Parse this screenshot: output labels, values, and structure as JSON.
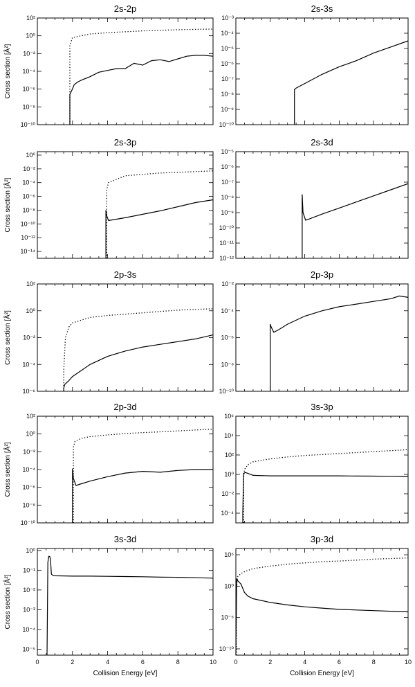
{
  "figure": {
    "shared_ylabel": "Cross section [Å²]",
    "shared_xlabel": "Collision Energy [eV]",
    "x_tick_labels": [
      "0",
      "2",
      "4",
      "6",
      "8",
      "10"
    ]
  },
  "chart_data": [
    {
      "type": "line",
      "title": "2s-2p",
      "xlabel": "",
      "ylabel": "Cross section [Å²]",
      "xlim": [
        0,
        10
      ],
      "ylim_log10": [
        -10,
        2
      ],
      "yscale": "log",
      "ytick_labels": [
        "10⁻¹⁰",
        "10⁻⁸",
        "10⁻⁶",
        "10⁻⁴",
        "10⁻²",
        "10⁰",
        "10²"
      ],
      "series": [
        {
          "style": "dotted",
          "onset": 1.85,
          "x": [
            1.85,
            2,
            3,
            4,
            5,
            6,
            7,
            8,
            9,
            10
          ],
          "log10_y": [
            -1.1,
            -0.2,
            0.2,
            0.35,
            0.45,
            0.55,
            0.62,
            0.68,
            0.72,
            0.75
          ]
        },
        {
          "style": "solid",
          "onset": 1.85,
          "x": [
            1.85,
            1.95,
            2.1,
            2.3,
            2.5,
            3,
            3.5,
            4,
            4.5,
            5,
            5.5,
            6,
            6.5,
            7,
            7.5,
            8,
            8.5,
            9,
            9.5,
            10
          ],
          "log10_y": [
            -6.6,
            -6.2,
            -5.5,
            -5.2,
            -5.0,
            -4.6,
            -4.1,
            -3.9,
            -3.7,
            -3.7,
            -3.1,
            -3.3,
            -2.8,
            -2.7,
            -2.9,
            -2.6,
            -2.3,
            -2.2,
            -2.2,
            -2.3
          ]
        }
      ]
    },
    {
      "type": "line",
      "title": "2s-3s",
      "xlabel": "",
      "ylabel": "",
      "xlim": [
        0,
        10
      ],
      "ylim_log10": [
        -10,
        -3
      ],
      "yscale": "log",
      "ytick_labels": [
        "10⁻¹⁰",
        "10⁻⁹",
        "10⁻⁸",
        "10⁻⁷",
        "10⁻⁶",
        "10⁻⁵",
        "10⁻⁴",
        "10⁻³"
      ],
      "series": [
        {
          "style": "solid",
          "onset": 3.4,
          "x": [
            3.4,
            3.5,
            4,
            5,
            6,
            7,
            8,
            9,
            10
          ],
          "log10_y": [
            -7.7,
            -7.6,
            -7.3,
            -6.7,
            -6.2,
            -5.8,
            -5.3,
            -4.9,
            -4.5
          ]
        }
      ]
    },
    {
      "type": "line",
      "title": "2s-3p",
      "xlabel": "",
      "ylabel": "Cross section [Å²]",
      "xlim": [
        0,
        10
      ],
      "ylim_log10": [
        -15,
        0.5
      ],
      "yscale": "log",
      "ytick_labels": [
        "10⁻¹⁴",
        "10⁻¹²",
        "10⁻¹⁰",
        "10⁻⁸",
        "10⁻⁶",
        "10⁻⁴",
        "10⁻²",
        "10⁰"
      ],
      "series": [
        {
          "style": "dotted",
          "onset": 3.95,
          "x": [
            3.95,
            4.05,
            5,
            6,
            7,
            8,
            9,
            10
          ],
          "log10_y": [
            -5.0,
            -4.0,
            -3.0,
            -2.8,
            -2.6,
            -2.5,
            -2.4,
            -2.3
          ]
        },
        {
          "style": "solid",
          "onset": 3.9,
          "x": [
            3.9,
            3.95,
            4.05,
            4.3,
            5,
            6,
            7,
            8,
            9,
            10
          ],
          "log10_y": [
            -8.0,
            -8.8,
            -9.5,
            -9.4,
            -9.1,
            -8.6,
            -8.1,
            -7.5,
            -6.9,
            -6.5
          ]
        }
      ]
    },
    {
      "type": "line",
      "title": "2s-3d",
      "xlabel": "",
      "ylabel": "",
      "xlim": [
        0,
        10
      ],
      "ylim_log10": [
        -12,
        -5
      ],
      "yscale": "log",
      "ytick_labels": [
        "10⁻¹²",
        "10⁻¹¹",
        "10⁻¹⁰",
        "10⁻⁹",
        "10⁻⁸",
        "10⁻⁷",
        "10⁻⁶",
        "10⁻⁵"
      ],
      "series": [
        {
          "style": "solid",
          "onset": 3.85,
          "x": [
            3.85,
            3.9,
            4.05,
            4.3,
            5,
            6,
            7,
            8,
            9,
            10
          ],
          "log10_y": [
            -7.8,
            -9.0,
            -9.5,
            -9.4,
            -9.1,
            -8.7,
            -8.3,
            -7.9,
            -7.5,
            -7.1
          ]
        }
      ]
    },
    {
      "type": "line",
      "title": "2p-3s",
      "xlabel": "",
      "ylabel": "Cross section [Å²]",
      "xlim": [
        0,
        10
      ],
      "ylim_log10": [
        -6,
        2
      ],
      "yscale": "log",
      "ytick_labels": [
        "10⁻⁶",
        "10⁻⁴",
        "10⁻²",
        "10⁰",
        "10²"
      ],
      "series": [
        {
          "style": "dotted",
          "onset": 1.5,
          "x": [
            1.5,
            1.6,
            1.8,
            2,
            3,
            4,
            5,
            6,
            7,
            8,
            9,
            10
          ],
          "log10_y": [
            -4.5,
            -2.0,
            -1.2,
            -0.9,
            -0.5,
            -0.35,
            -0.25,
            -0.15,
            -0.05,
            0.05,
            0.1,
            0.15
          ]
        },
        {
          "style": "solid",
          "onset": 1.5,
          "x": [
            1.5,
            1.55,
            1.8,
            2,
            3,
            4,
            5,
            6,
            7,
            8,
            9,
            10
          ],
          "log10_y": [
            -5.8,
            -5.5,
            -5.2,
            -4.9,
            -4.0,
            -3.4,
            -3.0,
            -2.7,
            -2.5,
            -2.3,
            -2.1,
            -1.8
          ]
        }
      ]
    },
    {
      "type": "line",
      "title": "2p-3p",
      "xlabel": "",
      "ylabel": "",
      "xlim": [
        0,
        10
      ],
      "ylim_log10": [
        -10,
        -2
      ],
      "yscale": "log",
      "ytick_labels": [
        "10⁻¹⁰",
        "10⁻⁸",
        "10⁻⁶",
        "10⁻⁴",
        "10⁻²"
      ],
      "series": [
        {
          "style": "solid",
          "onset": 2.0,
          "x": [
            2.0,
            2.05,
            2.2,
            2.5,
            3,
            4,
            5,
            6,
            7,
            8,
            9,
            9.5,
            10
          ],
          "log10_y": [
            -5.0,
            -5.2,
            -5.6,
            -5.4,
            -5.0,
            -4.4,
            -4.0,
            -3.7,
            -3.5,
            -3.3,
            -3.1,
            -2.9,
            -3.0
          ]
        }
      ]
    },
    {
      "type": "line",
      "title": "2p-3d",
      "xlabel": "",
      "ylabel": "Cross section [Å²]",
      "xlim": [
        0,
        10
      ],
      "ylim_log10": [
        -10,
        2
      ],
      "yscale": "log",
      "ytick_labels": [
        "10⁻¹⁰",
        "10⁻⁸",
        "10⁻⁶",
        "10⁻⁴",
        "10⁻²",
        "10⁰",
        "10²"
      ],
      "series": [
        {
          "style": "dotted",
          "onset": 2.05,
          "x": [
            2.05,
            2.15,
            2.5,
            3,
            4,
            5,
            6,
            7,
            8,
            9,
            10
          ],
          "log10_y": [
            -1.5,
            -0.8,
            -0.5,
            -0.3,
            -0.1,
            0.05,
            0.15,
            0.25,
            0.35,
            0.45,
            0.55
          ]
        },
        {
          "style": "solid",
          "onset": 2.0,
          "x": [
            2.0,
            2.05,
            2.2,
            2.5,
            3,
            4,
            5,
            6,
            7,
            8,
            9,
            10
          ],
          "log10_y": [
            -3.9,
            -5.0,
            -5.8,
            -5.6,
            -5.3,
            -4.8,
            -4.4,
            -4.2,
            -4.3,
            -4.1,
            -4.0,
            -4.0
          ]
        }
      ]
    },
    {
      "type": "line",
      "title": "3s-3p",
      "xlabel": "",
      "ylabel": "",
      "xlim": [
        0,
        10
      ],
      "ylim_log10": [
        -5,
        6
      ],
      "yscale": "log",
      "ytick_labels": [
        "10⁻⁴",
        "10⁻²",
        "10⁰",
        "10²",
        "10⁴",
        "10⁶"
      ],
      "series": [
        {
          "style": "dotted",
          "onset": 0.45,
          "x": [
            0.45,
            0.5,
            0.7,
            1,
            2,
            3,
            4,
            5,
            6,
            7,
            8,
            9,
            10
          ],
          "log10_y": [
            -0.5,
            0.5,
            1.0,
            1.3,
            1.6,
            1.8,
            1.95,
            2.05,
            2.15,
            2.25,
            2.35,
            2.45,
            2.55
          ]
        },
        {
          "style": "solid",
          "onset": 0.4,
          "x": [
            0.4,
            0.45,
            0.55,
            0.7,
            1,
            2,
            3,
            4,
            5,
            6,
            7,
            8,
            9,
            10
          ],
          "log10_y": [
            -4.0,
            0.1,
            0.2,
            0.1,
            -0.1,
            -0.15,
            -0.15,
            -0.15,
            -0.15,
            -0.15,
            -0.17,
            -0.18,
            -0.2,
            -0.22
          ]
        }
      ]
    },
    {
      "type": "line",
      "title": "3s-3d",
      "xlabel": "Collision Energy [eV]",
      "ylabel": "Cross section [Å²]",
      "xlim": [
        0,
        10
      ],
      "ylim_log10": [
        -5.3,
        0.1
      ],
      "yscale": "log",
      "ytick_labels": [
        "10⁻⁵",
        "10⁻⁴",
        "10⁻³",
        "10⁻²",
        "10⁻¹",
        "10⁰"
      ],
      "series": [
        {
          "style": "solid",
          "onset": 0.55,
          "x": [
            0.55,
            0.6,
            0.65,
            0.7,
            0.75,
            0.8,
            0.9,
            1,
            2,
            3,
            4,
            5,
            6,
            7,
            8,
            9,
            10
          ],
          "log10_y": [
            -5.3,
            -0.6,
            -0.3,
            -0.3,
            -0.45,
            -1.2,
            -1.27,
            -1.28,
            -1.3,
            -1.3,
            -1.31,
            -1.32,
            -1.33,
            -1.35,
            -1.36,
            -1.38,
            -1.4
          ]
        }
      ]
    },
    {
      "type": "line",
      "title": "3p-3d",
      "xlabel": "Collision Energy [eV]",
      "ylabel": "",
      "xlim": [
        0,
        10
      ],
      "ylim_log10": [
        -11,
        6
      ],
      "yscale": "log",
      "ytick_labels": [
        "10⁻¹⁰",
        "10⁻⁵",
        "10⁰",
        "10⁵"
      ],
      "series": [
        {
          "style": "dotted",
          "onset": 0.03,
          "x": [
            0.03,
            0.1,
            0.3,
            0.5,
            1,
            2,
            3,
            4,
            5,
            6,
            7,
            8,
            9,
            10
          ],
          "log10_y": [
            -0.5,
            1.5,
            2.0,
            2.3,
            2.8,
            3.2,
            3.5,
            3.7,
            3.9,
            4.0,
            4.15,
            4.3,
            4.4,
            4.5
          ]
        },
        {
          "style": "solid",
          "onset": 0.0,
          "x": [
            0.0,
            0.05,
            0.1,
            0.3,
            0.5,
            0.7,
            1,
            2,
            3,
            4,
            5,
            6,
            7,
            8,
            9,
            10
          ],
          "log10_y": [
            -11,
            1.2,
            0.9,
            0.3,
            -1.0,
            -1.6,
            -2.0,
            -2.6,
            -3.0,
            -3.3,
            -3.5,
            -3.7,
            -3.8,
            -3.9,
            -4.0,
            -4.1
          ]
        }
      ]
    }
  ]
}
